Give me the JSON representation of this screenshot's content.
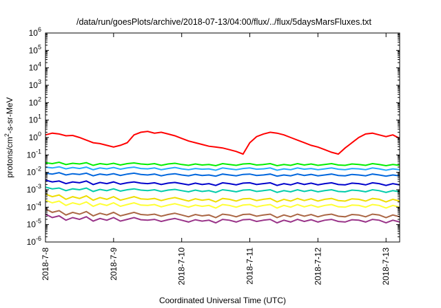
{
  "chart_data": {
    "type": "line",
    "title": "/data/run/goesPlots/archive/2018-07-13/04:00/flux/../flux/5daysMarsFluxes.txt",
    "xlabel": "Coordinated Universal Time (UTC)",
    "ylabel": {
      "prefix": "protons/cm",
      "superscript": "2",
      "suffix": "-s-sr-MeV"
    },
    "yscale": "log",
    "ylim_exponents": [
      -6,
      6
    ],
    "ytick_base": "10",
    "ytick_exponents": [
      "-6",
      "-5",
      "-4",
      "-3",
      "-2",
      "-1",
      "0",
      "1",
      "2",
      "3",
      "4",
      "5",
      "6"
    ],
    "xlim_days": [
      0,
      5.2
    ],
    "xtick_labels": [
      "2018-7-8",
      "2018-7-9",
      "2018-7-10",
      "2018-7-11",
      "2018-7-12",
      "2018-7-13"
    ],
    "grid": false,
    "legend": "none",
    "sampling": {
      "x_days_start": 0,
      "x_days_step": 0.1,
      "count": 53
    },
    "series": [
      {
        "color": "#ff0000",
        "log10_values": [
          0.15,
          0.25,
          0.2,
          0.1,
          0.12,
          0.0,
          -0.15,
          -0.3,
          -0.35,
          -0.45,
          -0.55,
          -0.45,
          -0.3,
          0.15,
          0.3,
          0.35,
          0.25,
          0.3,
          0.2,
          0.1,
          -0.05,
          -0.2,
          -0.3,
          -0.4,
          -0.5,
          -0.55,
          -0.6,
          -0.7,
          -0.8,
          -0.95,
          -0.3,
          0.05,
          0.2,
          0.3,
          0.25,
          0.15,
          0.0,
          -0.15,
          -0.3,
          -0.45,
          -0.55,
          -0.7,
          -0.85,
          -0.95,
          -0.6,
          -0.3,
          0.0,
          0.2,
          0.25,
          0.15,
          0.05,
          0.15,
          -0.05
        ]
      },
      {
        "color": "#00ee00",
        "log10_values": [
          -1.45,
          -1.5,
          -1.42,
          -1.55,
          -1.48,
          -1.52,
          -1.45,
          -1.6,
          -1.5,
          -1.55,
          -1.48,
          -1.58,
          -1.5,
          -1.46,
          -1.52,
          -1.55,
          -1.5,
          -1.6,
          -1.52,
          -1.48,
          -1.55,
          -1.6,
          -1.52,
          -1.58,
          -1.55,
          -1.62,
          -1.5,
          -1.55,
          -1.6,
          -1.52,
          -1.5,
          -1.58,
          -1.55,
          -1.5,
          -1.62,
          -1.55,
          -1.6,
          -1.5,
          -1.58,
          -1.52,
          -1.6,
          -1.55,
          -1.5,
          -1.58,
          -1.6,
          -1.52,
          -1.55,
          -1.6,
          -1.5,
          -1.55,
          -1.62,
          -1.55,
          -1.6
        ]
      },
      {
        "color": "#22aaff",
        "log10_values": [
          -1.7,
          -1.75,
          -1.68,
          -1.8,
          -1.72,
          -1.78,
          -1.7,
          -1.85,
          -1.75,
          -1.8,
          -1.72,
          -1.82,
          -1.75,
          -1.7,
          -1.78,
          -1.8,
          -1.75,
          -1.85,
          -1.78,
          -1.72,
          -1.8,
          -1.85,
          -1.78,
          -1.82,
          -1.8,
          -1.88,
          -1.75,
          -1.8,
          -1.85,
          -1.78,
          -1.75,
          -1.82,
          -1.8,
          -1.75,
          -1.88,
          -1.8,
          -1.85,
          -1.75,
          -1.82,
          -1.78,
          -1.85,
          -1.8,
          -1.75,
          -1.82,
          -1.85,
          -1.78,
          -1.8,
          -1.85,
          -1.75,
          -1.8,
          -1.88,
          -1.8,
          -1.85
        ]
      },
      {
        "color": "#0066dd",
        "log10_values": [
          -2.05,
          -2.1,
          -2.02,
          -2.15,
          -2.08,
          -2.12,
          -2.05,
          -2.2,
          -2.1,
          -2.15,
          -2.08,
          -2.18,
          -2.1,
          -2.05,
          -2.12,
          -2.15,
          -2.1,
          -2.2,
          -2.12,
          -2.08,
          -2.15,
          -2.2,
          -2.12,
          -2.18,
          -2.15,
          -2.22,
          -2.1,
          -2.15,
          -2.2,
          -2.12,
          -2.1,
          -2.18,
          -2.15,
          -2.1,
          -2.22,
          -2.15,
          -2.2,
          -2.1,
          -2.18,
          -2.12,
          -2.2,
          -2.15,
          -2.1,
          -2.18,
          -2.2,
          -2.12,
          -2.15,
          -2.2,
          -2.1,
          -2.15,
          -2.22,
          -2.15,
          -2.2
        ]
      },
      {
        "color": "#0000cc",
        "log10_values": [
          -2.45,
          -2.55,
          -2.5,
          -2.65,
          -2.55,
          -2.6,
          -2.5,
          -2.7,
          -2.58,
          -2.65,
          -2.55,
          -2.68,
          -2.6,
          -2.55,
          -2.62,
          -2.65,
          -2.6,
          -2.7,
          -2.62,
          -2.58,
          -2.65,
          -2.72,
          -2.62,
          -2.7,
          -2.65,
          -2.75,
          -2.6,
          -2.65,
          -2.72,
          -2.62,
          -2.6,
          -2.7,
          -2.65,
          -2.6,
          -2.75,
          -2.65,
          -2.72,
          -2.6,
          -2.7,
          -2.62,
          -2.72,
          -2.65,
          -2.6,
          -2.7,
          -2.72,
          -2.62,
          -2.65,
          -2.72,
          -2.6,
          -2.65,
          -2.75,
          -2.65,
          -2.72
        ]
      },
      {
        "color": "#00ccaa",
        "log10_values": [
          -2.85,
          -2.95,
          -2.9,
          -3.05,
          -2.95,
          -3.0,
          -2.9,
          -3.1,
          -2.98,
          -3.05,
          -2.95,
          -3.08,
          -3.0,
          -2.95,
          -3.02,
          -3.05,
          -3.0,
          -3.1,
          -3.02,
          -2.98,
          -3.05,
          -3.12,
          -3.02,
          -3.1,
          -3.05,
          -3.15,
          -3.0,
          -3.05,
          -3.12,
          -3.02,
          -3.0,
          -3.1,
          -3.05,
          -3.0,
          -3.15,
          -3.05,
          -3.12,
          -3.0,
          -3.1,
          -3.02,
          -3.12,
          -3.05,
          -3.0,
          -3.1,
          -3.12,
          -3.02,
          -3.05,
          -3.12,
          -3.0,
          -3.05,
          -3.15,
          -3.05,
          -3.12
        ]
      },
      {
        "color": "#eedd00",
        "log10_values": [
          -3.25,
          -3.4,
          -3.3,
          -3.55,
          -3.4,
          -3.5,
          -3.35,
          -3.6,
          -3.45,
          -3.55,
          -3.4,
          -3.6,
          -3.5,
          -3.4,
          -3.52,
          -3.55,
          -3.5,
          -3.62,
          -3.52,
          -3.45,
          -3.55,
          -3.65,
          -3.52,
          -3.6,
          -3.55,
          -3.7,
          -3.5,
          -3.55,
          -3.65,
          -3.52,
          -3.5,
          -3.62,
          -3.55,
          -3.5,
          -3.7,
          -3.55,
          -3.65,
          -3.5,
          -3.62,
          -3.52,
          -3.65,
          -3.55,
          -3.5,
          -3.62,
          -3.65,
          -3.52,
          -3.55,
          -3.65,
          -3.5,
          -3.55,
          -3.7,
          -3.55,
          -3.65
        ]
      },
      {
        "color": "#ffff33",
        "log10_values": [
          -3.6,
          -3.75,
          -3.65,
          -3.9,
          -3.75,
          -3.85,
          -3.7,
          -3.95,
          -3.8,
          -3.9,
          -3.75,
          -3.95,
          -3.85,
          -3.75,
          -3.88,
          -3.9,
          -3.85,
          -3.98,
          -3.88,
          -3.8,
          -3.9,
          -4.0,
          -3.88,
          -3.95,
          -3.9,
          -4.05,
          -3.85,
          -3.9,
          -4.0,
          -3.88,
          -3.85,
          -3.98,
          -3.9,
          -3.85,
          -4.05,
          -3.9,
          -4.0,
          -3.85,
          -3.98,
          -3.88,
          -4.0,
          -3.9,
          -3.85,
          -3.98,
          -4.0,
          -3.88,
          -3.9,
          -4.0,
          -3.85,
          -3.9,
          -4.05,
          -3.9,
          -4.0
        ]
      },
      {
        "color": "#aa6644",
        "log10_values": [
          -4.1,
          -4.3,
          -4.2,
          -4.45,
          -4.3,
          -4.4,
          -4.25,
          -4.5,
          -4.35,
          -4.45,
          -4.3,
          -4.5,
          -4.4,
          -4.3,
          -4.42,
          -4.45,
          -4.4,
          -4.52,
          -4.42,
          -4.35,
          -4.45,
          -4.55,
          -4.42,
          -4.5,
          -4.45,
          -4.6,
          -4.4,
          -4.45,
          -4.55,
          -4.42,
          -4.4,
          -4.52,
          -4.45,
          -4.4,
          -4.6,
          -4.45,
          -4.55,
          -4.4,
          -4.52,
          -4.42,
          -4.55,
          -4.45,
          -4.4,
          -4.52,
          -4.55,
          -4.42,
          -4.45,
          -4.55,
          -4.4,
          -4.45,
          -4.6,
          -4.45,
          -4.55
        ]
      },
      {
        "color": "#993388",
        "log10_values": [
          -4.4,
          -4.6,
          -4.5,
          -4.75,
          -4.6,
          -4.7,
          -4.55,
          -4.8,
          -4.65,
          -4.75,
          -4.6,
          -4.8,
          -4.7,
          -4.6,
          -4.72,
          -4.75,
          -4.7,
          -4.82,
          -4.72,
          -4.65,
          -4.75,
          -4.85,
          -4.72,
          -4.8,
          -4.75,
          -4.9,
          -4.7,
          -4.75,
          -4.85,
          -4.72,
          -4.7,
          -4.82,
          -4.75,
          -4.7,
          -4.9,
          -4.75,
          -4.85,
          -4.7,
          -4.82,
          -4.72,
          -4.85,
          -4.75,
          -4.7,
          -4.82,
          -4.85,
          -4.72,
          -4.75,
          -4.85,
          -4.7,
          -4.75,
          -4.9,
          -4.75,
          -4.85
        ]
      }
    ]
  }
}
